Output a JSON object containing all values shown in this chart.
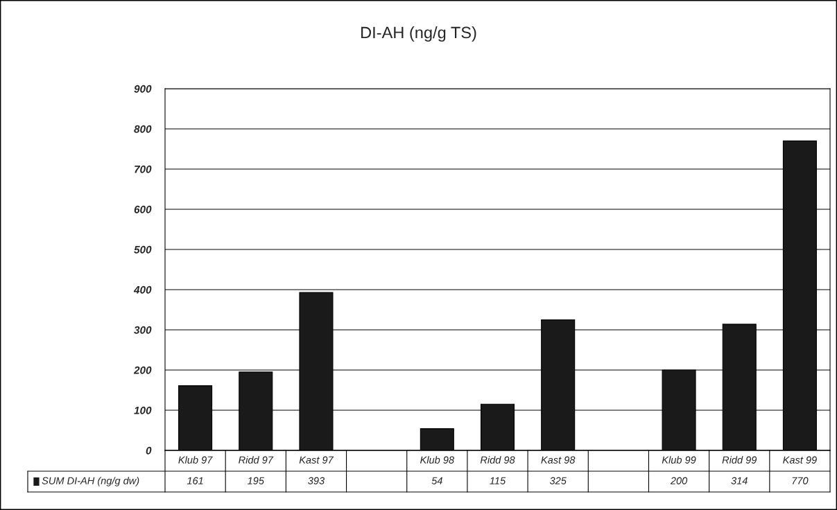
{
  "chart_data": {
    "type": "bar",
    "title": "DI-AH (ng/g TS)",
    "categories": [
      "Klub 97",
      "Ridd 97",
      "Kast 97",
      null,
      "Klub 98",
      "Ridd 98",
      "Kast 98",
      null,
      "Klub 99",
      "Ridd 99",
      "Kast 99"
    ],
    "series": [
      {
        "name": "SUM DI-AH (ng/g dw)",
        "color": "#1a1a1a",
        "values": [
          161,
          195,
          393,
          null,
          54,
          115,
          325,
          null,
          200,
          314,
          770
        ]
      }
    ],
    "ylim": [
      0,
      900
    ],
    "yticks": [
      0,
      100,
      200,
      300,
      400,
      500,
      600,
      700,
      800,
      900
    ],
    "grid": "y",
    "data_labels": true,
    "legend": "bottom"
  }
}
